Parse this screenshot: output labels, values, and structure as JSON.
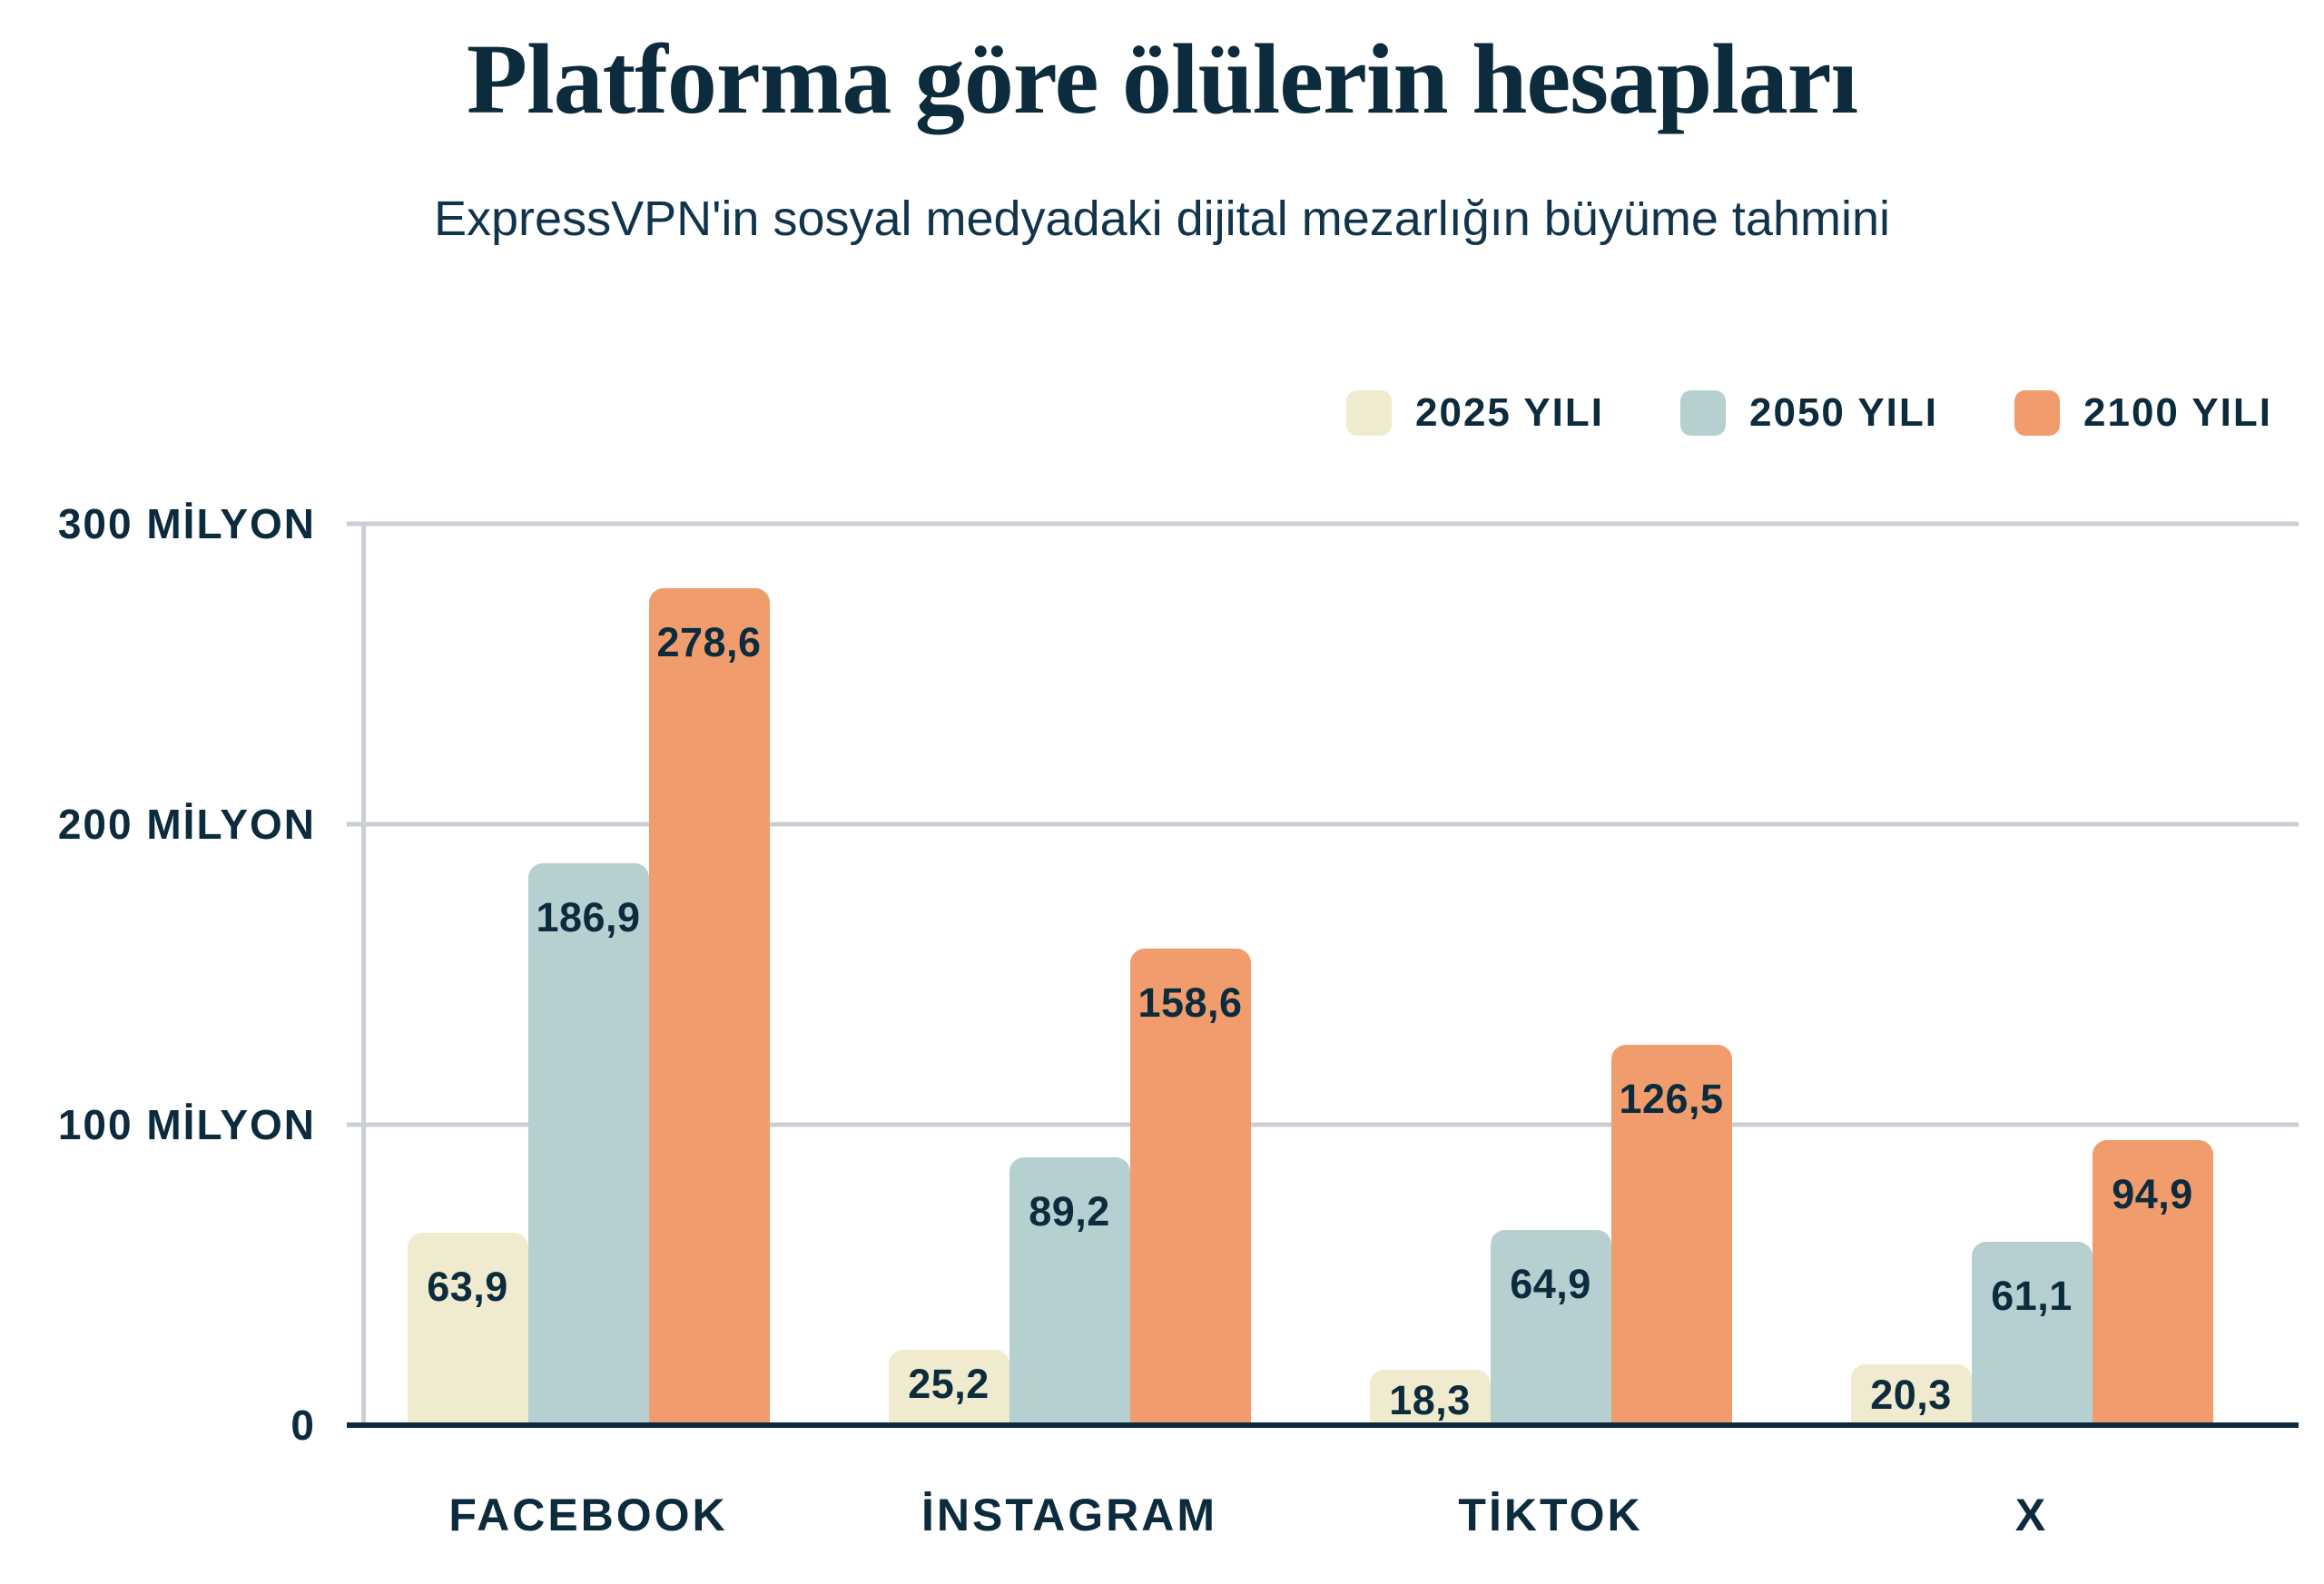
{
  "title": "Platforma göre ölülerin hesapları",
  "subtitle": "ExpressVPN'in sosyal medyadaki dijital mezarlığın büyüme tahmini",
  "colors": {
    "navy": "#0C2B3D",
    "subtitle_navy": "#12344B",
    "grid_gray": "#C9CFD5",
    "background": "#FFFFFF",
    "cream": "#F0EACE",
    "light_blue": "#B6CFD1",
    "orange": "#F19C6D"
  },
  "legend": [
    {
      "label": "2025 YILI",
      "color_key": "cream"
    },
    {
      "label": "2050 YILI",
      "color_key": "light_blue"
    },
    {
      "label": "2100 YILI",
      "color_key": "orange"
    }
  ],
  "chart_data": {
    "type": "bar",
    "categories": [
      "FACEBOOK",
      "İNSTAGRAM",
      "TİKTOK",
      "X"
    ],
    "series": [
      {
        "name": "2025 YILI",
        "color_key": "cream",
        "values": [
          63.9,
          25.2,
          18.3,
          20.3
        ],
        "labels": [
          "63,9",
          "25,2",
          "18,3",
          "20,3"
        ]
      },
      {
        "name": "2050 YILI",
        "color_key": "light_blue",
        "values": [
          186.9,
          89.2,
          64.9,
          61.1
        ],
        "labels": [
          "186,9",
          "89,2",
          "64,9",
          "61,1"
        ]
      },
      {
        "name": "2100 YILI",
        "color_key": "orange",
        "values": [
          278.6,
          158.6,
          126.5,
          94.9
        ],
        "labels": [
          "278,6",
          "158,6",
          "126,5",
          "94,9"
        ]
      }
    ],
    "y_ticks": [
      {
        "value": 300,
        "label": "300 MİLYON"
      },
      {
        "value": 200,
        "label": "200 MİLYON"
      },
      {
        "value": 100,
        "label": "100 MİLYON"
      },
      {
        "value": 0,
        "label": "0"
      }
    ],
    "ylim": [
      0,
      300
    ],
    "unit": "MİLYON",
    "grid": true,
    "legend_position": "top-right",
    "value_labels_inside_bars": true
  }
}
